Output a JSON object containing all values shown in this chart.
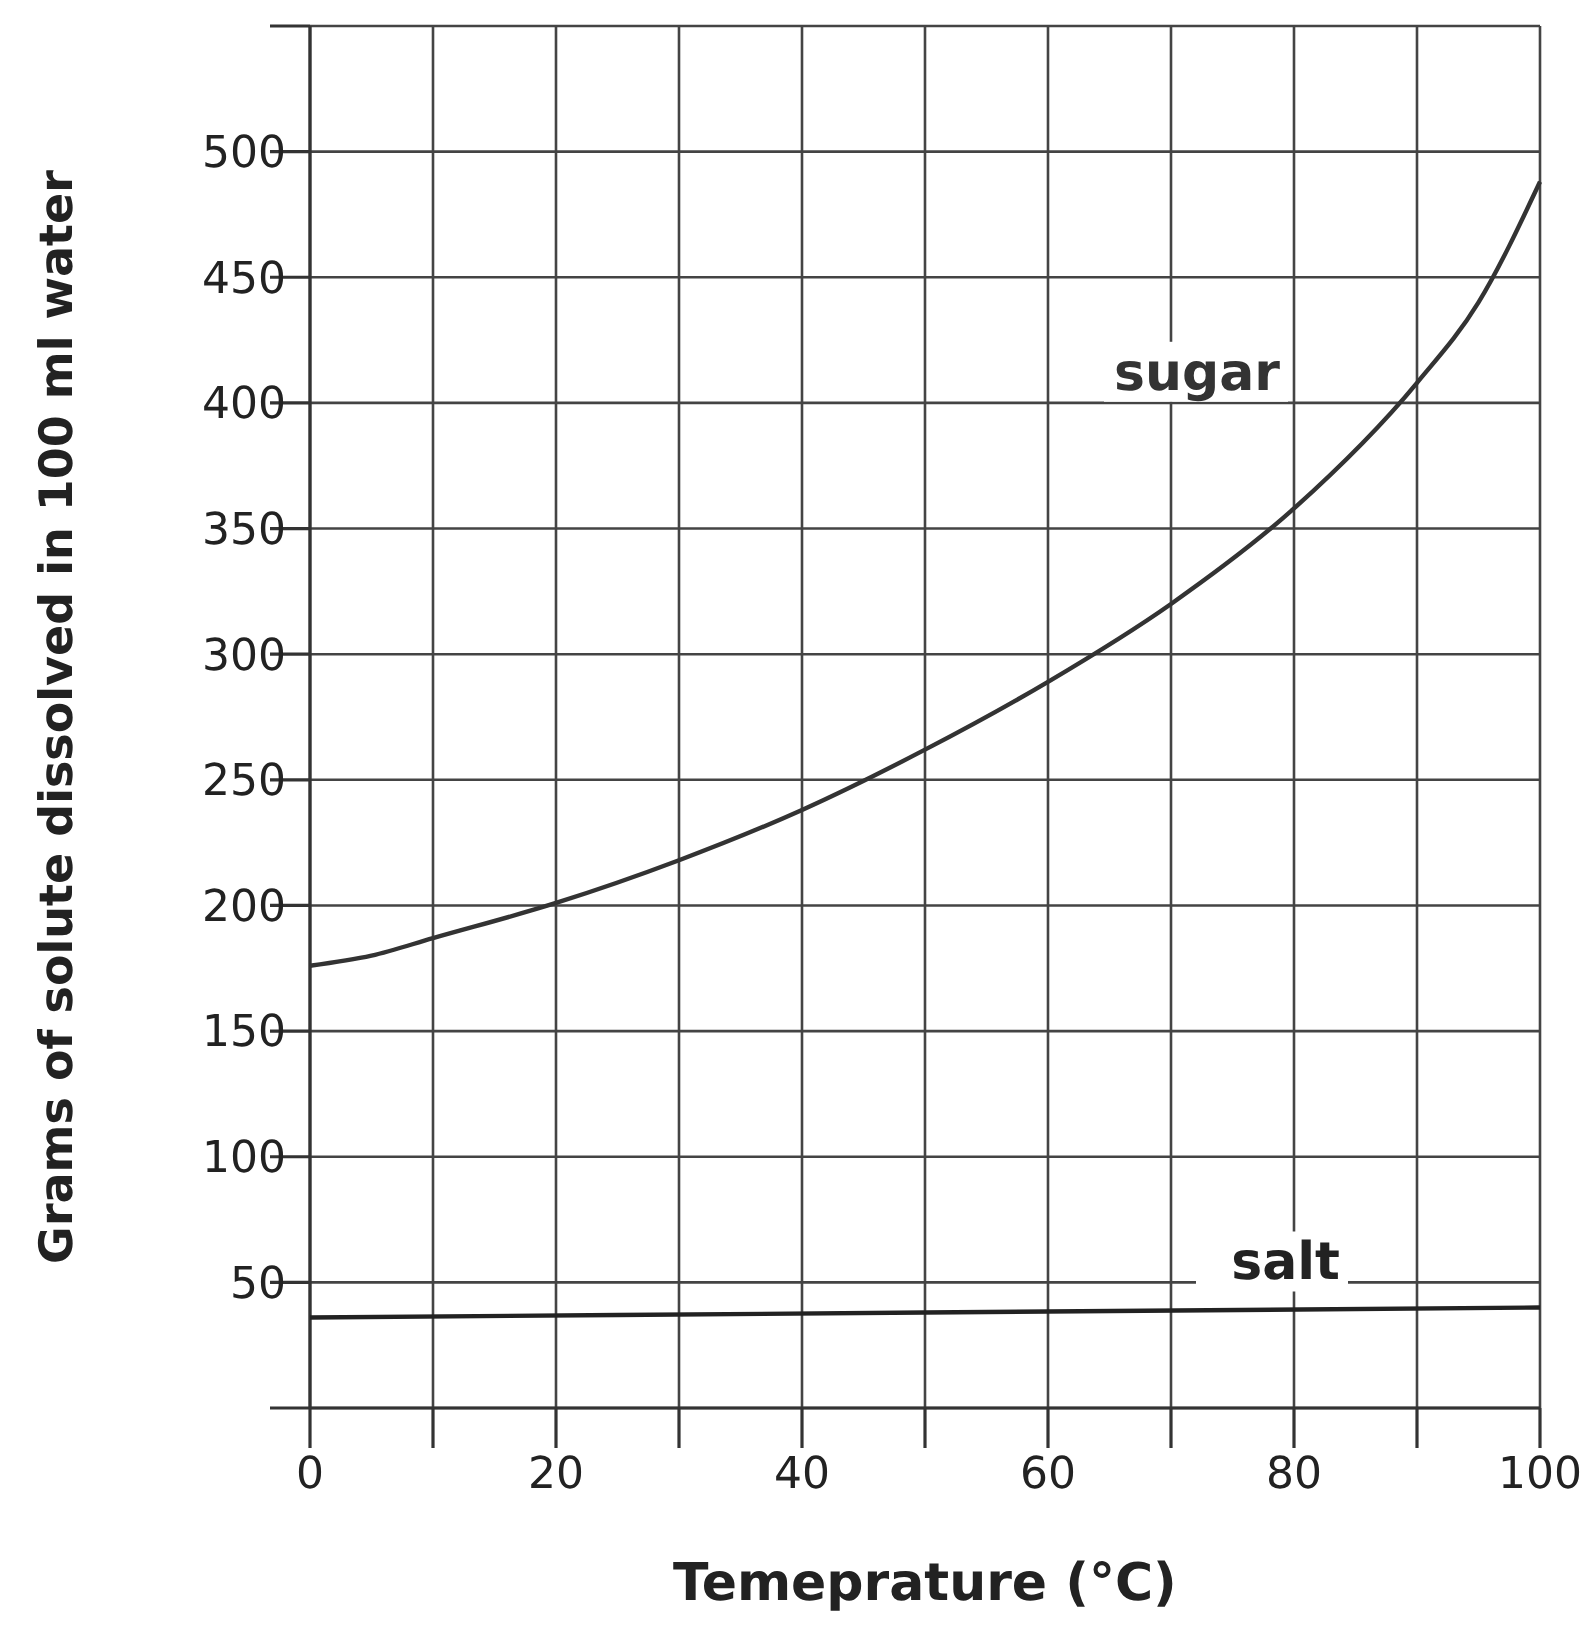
{
  "chart_data": {
    "type": "line",
    "xlabel": "Temeprature (°C)",
    "ylabel": "Grams of solute dissolved in 100 ml water",
    "xlim": [
      0,
      100
    ],
    "ylim": [
      0,
      550
    ],
    "xticks": [
      0,
      {
        "value": 10,
        "label": null
      },
      20,
      {
        "value": 30,
        "label": null
      },
      40,
      {
        "value": 50,
        "label": null
      },
      60,
      {
        "value": 70,
        "label": null
      },
      80,
      {
        "value": 90,
        "label": null
      },
      100
    ],
    "yticks": [
      {
        "value": 0,
        "label": null
      },
      50,
      100,
      150,
      200,
      250,
      300,
      350,
      400,
      450,
      500,
      {
        "value": 550,
        "label": null
      }
    ],
    "grid": true,
    "marker": "none",
    "line_style": "solid",
    "series": [
      {
        "name": "sugar",
        "color": "#333333",
        "x": [
          0,
          5,
          10,
          20,
          30,
          40,
          50,
          60,
          70,
          80,
          90,
          95,
          100
        ],
        "values": [
          176,
          180,
          187,
          201,
          218,
          238,
          262,
          289,
          320,
          358,
          408,
          440,
          488
        ]
      },
      {
        "name": "salt",
        "color": "#222222",
        "x": [
          0,
          50,
          100
        ],
        "values": [
          36,
          38,
          40
        ]
      }
    ]
  }
}
